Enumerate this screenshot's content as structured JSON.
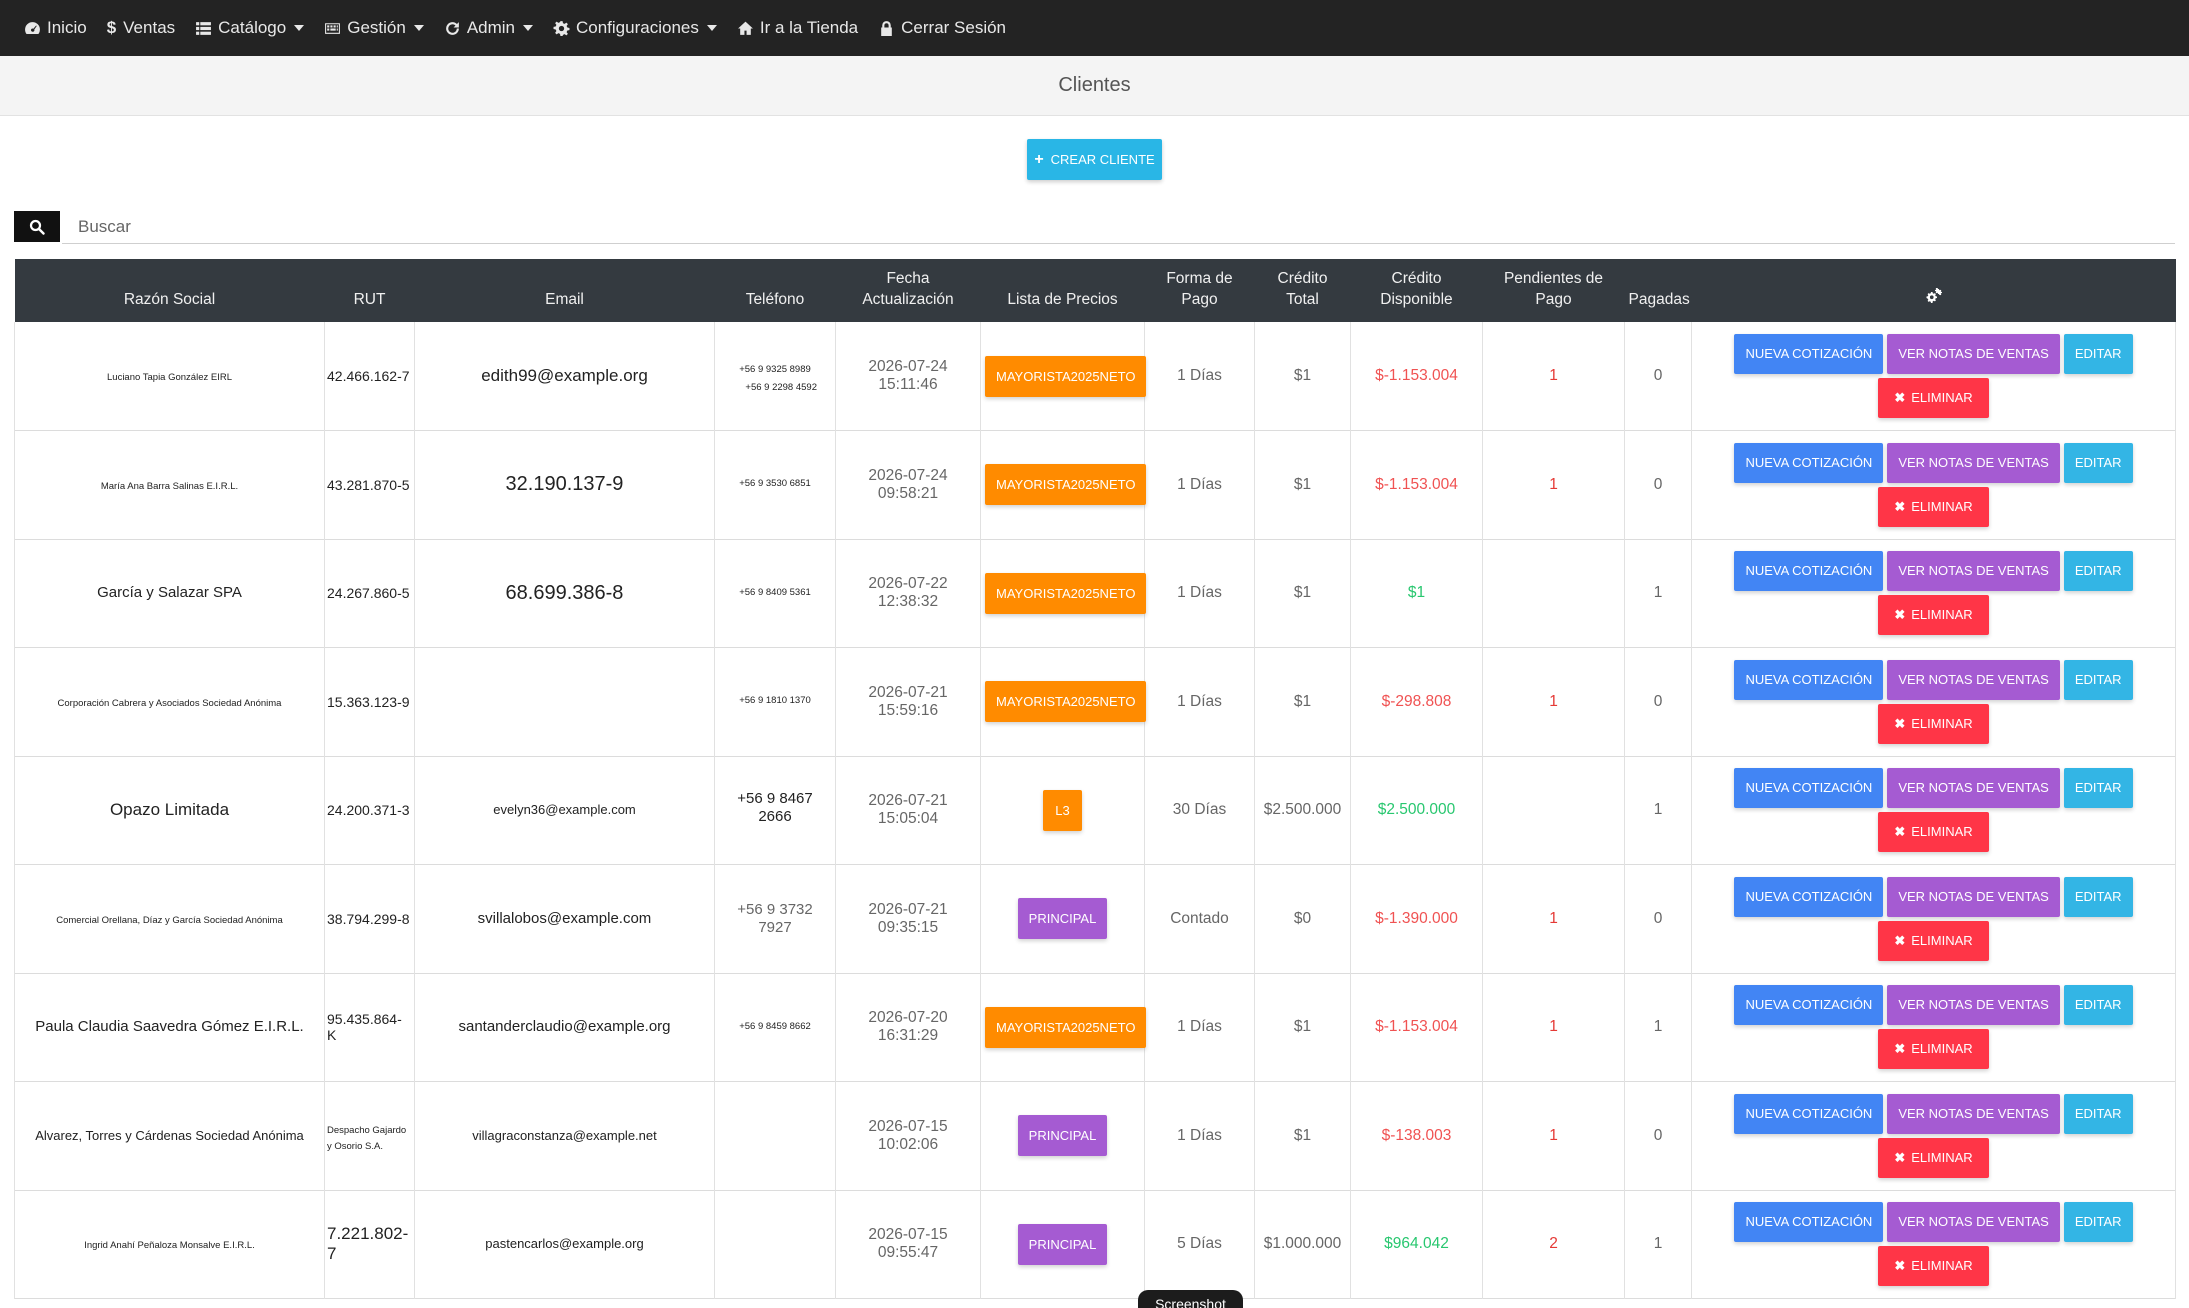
{
  "nav": {
    "items": [
      {
        "label": "Inicio",
        "icon": "dashboard-icon",
        "dropdown": false
      },
      {
        "label": "Ventas",
        "icon": "dollar-icon",
        "dropdown": false
      },
      {
        "label": "Catálogo",
        "icon": "list-icon",
        "dropdown": true
      },
      {
        "label": "Gestión",
        "icon": "keyboard-icon",
        "dropdown": true
      },
      {
        "label": "Admin",
        "icon": "refresh-icon",
        "dropdown": true
      },
      {
        "label": "Configuraciones",
        "icon": "gear-icon",
        "dropdown": true
      },
      {
        "label": "Ir a la Tienda",
        "icon": "home-icon",
        "dropdown": false
      },
      {
        "label": "Cerrar Sesión",
        "icon": "lock-icon",
        "dropdown": false
      }
    ]
  },
  "page": {
    "title": "Clientes"
  },
  "toolbar": {
    "create_label": "CREAR CLIENTE"
  },
  "search": {
    "placeholder": "Buscar"
  },
  "table": {
    "headers": {
      "razon": "Razón Social",
      "rut": "RUT",
      "email": "Email",
      "telefono": "Teléfono",
      "fecha": "Fecha Actualización",
      "lista": "Lista de Precios",
      "forma_1": "Forma de",
      "forma_2": "Pago",
      "credito_total_1": "Crédito",
      "credito_total_2": "Total",
      "credito_disp_1": "Crédito",
      "credito_disp_2": "Disponible",
      "pend_1": "Pendientes de",
      "pend_2": "Pago",
      "pagadas": "Pagadas"
    },
    "actions": {
      "nueva": "NUEVA COTIZACIÓN",
      "ver": "VER NOTAS DE VENTAS",
      "editar": "EDITAR",
      "eliminar": "ELIMINAR"
    },
    "rows": [
      {
        "razon": "Luciano Tapia González EIRL",
        "rut": "42.466.162-7",
        "email": "edith99@example.org",
        "tel1": "+56 9 9325 8989",
        "tel2": "+56 9 2298 4592",
        "fecha1": "2026-07-24",
        "fecha2": "15:11:46",
        "lista": "MAYORISTA2025NETO",
        "lista_color": "orange",
        "forma": "1 Días",
        "credito_total": "$1",
        "credito_disp": "$-1.153.004",
        "disp_state": "neg",
        "pendientes": "1",
        "pagadas": "0"
      },
      {
        "razon": "María Ana Barra Salinas E.I.R.L.",
        "rut": "43.281.870-5",
        "email": "32.190.137-9",
        "tel1": "+56 9 3530 6851",
        "tel2": "",
        "fecha1": "2026-07-24",
        "fecha2": "09:58:21",
        "lista": "MAYORISTA2025NETO",
        "lista_color": "orange",
        "forma": "1 Días",
        "credito_total": "$1",
        "credito_disp": "$-1.153.004",
        "disp_state": "neg",
        "pendientes": "1",
        "pagadas": "0"
      },
      {
        "razon": "García y Salazar SPA",
        "rut": "24.267.860-5",
        "email": "68.699.386-8",
        "tel1": "+56 9 8409 5361",
        "tel2": "",
        "fecha1": "2026-07-22",
        "fecha2": "12:38:32",
        "lista": "MAYORISTA2025NETO",
        "lista_color": "orange",
        "forma": "1 Días",
        "credito_total": "$1",
        "credito_disp": "$1",
        "disp_state": "pos",
        "pendientes": "",
        "pagadas": "1"
      },
      {
        "razon": "Corporación Cabrera y Asociados Sociedad Anónima",
        "rut": "15.363.123-9",
        "email": "",
        "tel1": "+56 9 1810 1370",
        "tel2": "",
        "fecha1": "2026-07-21",
        "fecha2": "15:59:16",
        "lista": "MAYORISTA2025NETO",
        "lista_color": "orange",
        "forma": "1 Días",
        "credito_total": "$1",
        "credito_disp": "$-298.808",
        "disp_state": "neg",
        "pendientes": "1",
        "pagadas": "0"
      },
      {
        "razon": "Opazo Limitada",
        "rut": "24.200.371-3",
        "email": "evelyn36@example.com",
        "tel1": "+56 9 8467 2666",
        "tel2": "",
        "fecha1": "2026-07-21",
        "fecha2": "15:05:04",
        "lista": "L3",
        "lista_color": "orange",
        "forma": "30 Días",
        "credito_total": "$2.500.000",
        "credito_disp": "$2.500.000",
        "disp_state": "pos",
        "pendientes": "",
        "pagadas": "1"
      },
      {
        "razon": "Comercial Orellana, Díaz y García Sociedad Anónima",
        "rut": "38.794.299-8",
        "email": "svillalobos@example.com",
        "tel1": "+56 9 3732",
        "tel2": "7927",
        "fecha1": "2026-07-21",
        "fecha2": "09:35:15",
        "lista": "PRINCIPAL",
        "lista_color": "purple",
        "forma": "Contado",
        "credito_total": "$0",
        "credito_disp": "$-1.390.000",
        "disp_state": "neg",
        "pendientes": "1",
        "pagadas": "0"
      },
      {
        "razon": "Paula Claudia Saavedra Gómez E.I.R.L.",
        "rut": "95.435.864-K",
        "email": "santanderclaudio@example.org",
        "tel1": "+56 9 8459 8662",
        "tel2": "",
        "fecha1": "2026-07-20",
        "fecha2": "16:31:29",
        "lista": "MAYORISTA2025NETO",
        "lista_color": "orange",
        "forma": "1 Días",
        "credito_total": "$1",
        "credito_disp": "$-1.153.004",
        "disp_state": "neg",
        "pendientes": "1",
        "pagadas": "1"
      },
      {
        "razon": "Alvarez, Torres y Cárdenas Sociedad Anónima",
        "rut": "Despacho Gajardo y Osorio S.A.",
        "email": "villagraconstanza@example.net",
        "tel1": "",
        "tel2": "",
        "fecha1": "2026-07-15",
        "fecha2": "10:02:06",
        "lista": "PRINCIPAL",
        "lista_color": "purple",
        "forma": "1 Días",
        "credito_total": "$1",
        "credito_disp": "$-138.003",
        "disp_state": "neg",
        "pendientes": "1",
        "pagadas": "0"
      },
      {
        "razon": "Ingrid Anahí Peñaloza Monsalve E.I.R.L.",
        "rut": "7.221.802-7",
        "email": "pastencarlos@example.org",
        "tel1": "",
        "tel2": "",
        "fecha1": "2026-07-15",
        "fecha2": "09:55:47",
        "lista": "PRINCIPAL",
        "lista_color": "purple",
        "forma": "5 Días",
        "credito_total": "$1.000.000",
        "credito_disp": "$964.042",
        "disp_state": "pos",
        "pendientes": "2",
        "pagadas": "1"
      }
    ]
  },
  "overlay": {
    "label": "Screenshot"
  },
  "colors": {
    "navbar": "#232323",
    "table_header": "#343a40",
    "orange": "#ff8b00",
    "purple": "#a55bd2",
    "blue": "#4285f4",
    "cyan": "#33b5e5",
    "red": "#ff3547",
    "negative": "#f05252",
    "positive": "#28c76f"
  }
}
